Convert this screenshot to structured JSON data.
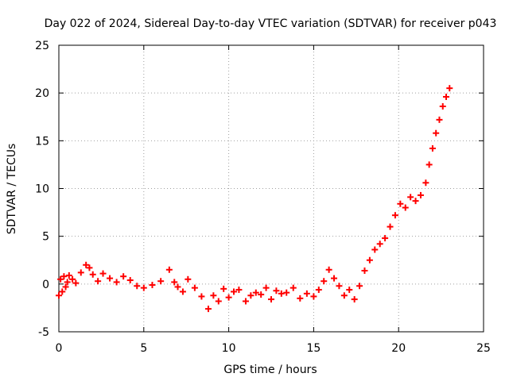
{
  "chart_data": {
    "type": "scatter",
    "title": "Day 022 of 2024, Sidereal Day-to-day VTEC variation (SDTVAR) for receiver p043",
    "xlabel": "GPS time / hours",
    "ylabel": "SDTVAR / TECUs",
    "xlim": [
      0,
      25
    ],
    "ylim": [
      -5,
      25
    ],
    "xticks": [
      0,
      5,
      10,
      15,
      20,
      25
    ],
    "yticks": [
      -5,
      0,
      5,
      10,
      15,
      20,
      25
    ],
    "grid": true,
    "marker": "+",
    "series": [
      {
        "name": "SDTVAR",
        "color": "#ff0000",
        "x": [
          0.0,
          0.1,
          0.2,
          0.3,
          0.4,
          0.5,
          0.6,
          0.8,
          1.0,
          1.3,
          1.6,
          1.8,
          2.0,
          2.3,
          2.6,
          3.0,
          3.4,
          3.8,
          4.2,
          4.6,
          5.0,
          5.5,
          6.0,
          6.5,
          6.8,
          7.0,
          7.3,
          7.6,
          8.0,
          8.4,
          8.8,
          9.1,
          9.4,
          9.7,
          10.0,
          10.3,
          10.6,
          11.0,
          11.3,
          11.6,
          11.9,
          12.2,
          12.5,
          12.8,
          13.1,
          13.4,
          13.8,
          14.2,
          14.6,
          15.0,
          15.3,
          15.6,
          15.9,
          16.2,
          16.5,
          16.8,
          17.1,
          17.4,
          17.7,
          18.0,
          18.3,
          18.6,
          18.9,
          19.2,
          19.5,
          19.8,
          20.1,
          20.4,
          20.7,
          21.0,
          21.3,
          21.6,
          21.8,
          22.0,
          22.2,
          22.4,
          22.6,
          22.8,
          23.0
        ],
        "y": [
          -1.2,
          0.5,
          -0.8,
          0.8,
          -0.3,
          0.2,
          0.9,
          0.5,
          0.1,
          1.2,
          2.0,
          1.7,
          1.0,
          0.3,
          1.1,
          0.6,
          0.2,
          0.8,
          0.4,
          -0.2,
          -0.4,
          -0.1,
          0.3,
          1.5,
          0.2,
          -0.3,
          -0.8,
          0.5,
          -0.4,
          -1.3,
          -2.6,
          -1.2,
          -1.8,
          -0.5,
          -1.4,
          -0.8,
          -0.6,
          -1.8,
          -1.2,
          -0.9,
          -1.1,
          -0.4,
          -1.6,
          -0.7,
          -1.0,
          -0.9,
          -0.4,
          -1.5,
          -1.0,
          -1.3,
          -0.6,
          0.3,
          1.5,
          0.6,
          -0.2,
          -1.2,
          -0.6,
          -1.6,
          -0.2,
          1.4,
          2.5,
          3.6,
          4.2,
          4.8,
          6.0,
          7.2,
          8.4,
          8.0,
          9.1,
          8.7,
          9.3,
          10.6,
          12.5,
          14.2,
          15.8,
          17.2,
          18.6,
          19.6,
          20.5
        ]
      }
    ]
  }
}
